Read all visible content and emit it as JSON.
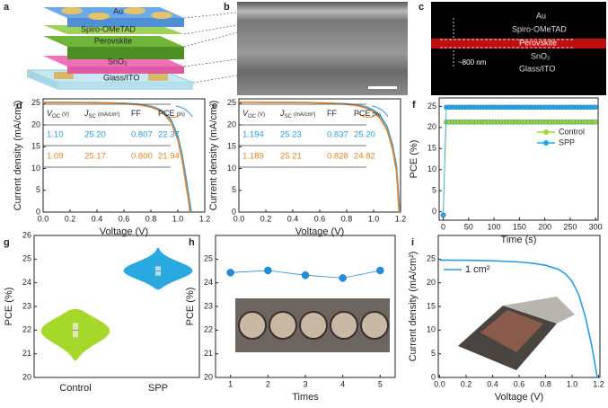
{
  "schematic": {
    "label": "a",
    "layers": [
      "Au",
      "Spiro-OMeTAD",
      "Perovskite",
      "SnO₂",
      "Glass/ITO"
    ]
  },
  "sem": {
    "label": "b"
  },
  "pl_image": {
    "label": "c",
    "layers": [
      "Au",
      "Spiro-OMeTAD",
      "Perovskite",
      "SnO₂",
      "Glass/ITO"
    ],
    "thickness": "~800 nm"
  },
  "chart_data": [
    {
      "type": "line",
      "label": "d",
      "xlabel": "Voltage (V)",
      "ylabel": "Current density (mA/cm²)",
      "xlim": [
        0,
        1.2
      ],
      "xticks": [
        {
          "value": 0,
          "label": "0.0"
        },
        0.2,
        0.4,
        0.6,
        0.8,
        {
          "value": 1,
          "label": "1.0"
        },
        1.2
      ],
      "ylim": [
        0,
        26
      ],
      "yticks": [
        0,
        5,
        10,
        15,
        20,
        25
      ],
      "series": [
        {
          "color": "#2b9be0",
          "x": [
            0,
            0.1,
            0.2,
            0.3,
            0.4,
            0.5,
            0.6,
            0.7,
            0.8,
            0.85,
            0.9,
            0.95,
            1.0,
            1.03,
            1.06,
            1.08,
            1.1
          ],
          "values": [
            25.2,
            25.2,
            25.19,
            25.18,
            25.15,
            25.1,
            25.0,
            24.8,
            24.3,
            23.8,
            22.9,
            21.2,
            17.5,
            13.5,
            8.0,
            4.0,
            0
          ]
        },
        {
          "color": "#e8842a",
          "x": [
            0,
            0.1,
            0.2,
            0.3,
            0.4,
            0.5,
            0.6,
            0.7,
            0.8,
            0.85,
            0.9,
            0.95,
            1.0,
            1.03,
            1.06,
            1.08,
            1.09
          ],
          "values": [
            25.17,
            25.17,
            25.16,
            25.14,
            25.1,
            25.05,
            24.9,
            24.65,
            24.1,
            23.5,
            22.5,
            20.6,
            16.6,
            12.3,
            6.5,
            2.6,
            0
          ]
        }
      ],
      "table": {
        "header": [
          {
            "main": "V",
            "sub": "OC",
            "unit": "(V)"
          },
          {
            "main": "J",
            "sub": "SC",
            "unit": "(mA/cm²)"
          },
          {
            "main": "FF"
          },
          {
            "main": "PCE",
            "unit": "(%)"
          }
        ],
        "rows": [
          [
            "1.10",
            "25.20",
            "0.807",
            "22.37"
          ],
          [
            "1.09",
            "25.17",
            "0.800",
            "21.94"
          ]
        ]
      }
    },
    {
      "type": "line",
      "label": "e",
      "xlabel": "Voltage (V)",
      "ylabel": "Current density (mA/cm²)",
      "xlim": [
        0,
        1.2
      ],
      "xticks": [
        {
          "value": 0,
          "label": "0.0"
        },
        0.2,
        0.4,
        0.6,
        0.8,
        {
          "value": 1,
          "label": "1.0"
        },
        1.2
      ],
      "ylim": [
        0,
        26
      ],
      "yticks": [
        0,
        5,
        10,
        15,
        20,
        25
      ],
      "series": [
        {
          "color": "#2b9be0",
          "x": [
            0,
            0.1,
            0.2,
            0.3,
            0.4,
            0.5,
            0.6,
            0.7,
            0.8,
            0.9,
            0.95,
            1.0,
            1.05,
            1.1,
            1.14,
            1.17,
            1.194
          ],
          "values": [
            25.23,
            25.23,
            25.22,
            25.21,
            25.19,
            25.16,
            25.1,
            25.0,
            24.85,
            24.5,
            24.1,
            23.4,
            22.1,
            19.6,
            15.5,
            10.5,
            0
          ]
        },
        {
          "color": "#e8842a",
          "x": [
            0,
            0.1,
            0.2,
            0.3,
            0.4,
            0.5,
            0.6,
            0.7,
            0.8,
            0.9,
            0.95,
            1.0,
            1.05,
            1.1,
            1.14,
            1.17,
            1.189
          ],
          "values": [
            25.21,
            25.21,
            25.2,
            25.19,
            25.17,
            25.13,
            25.06,
            24.95,
            24.75,
            24.3,
            23.8,
            23.0,
            21.5,
            18.8,
            14.5,
            9.3,
            0
          ]
        }
      ],
      "table": {
        "header": [
          {
            "main": "V",
            "sub": "OC",
            "unit": "(V)"
          },
          {
            "main": "J",
            "sub": "SC",
            "unit": "(mA/cm²)"
          },
          {
            "main": "FF"
          },
          {
            "main": "PCE",
            "unit": "(%)"
          }
        ],
        "rows": [
          [
            "1.194",
            "25.23",
            "0.837",
            "25.20"
          ],
          [
            "1.189",
            "25.21",
            "0.828",
            "24.82"
          ]
        ]
      }
    },
    {
      "type": "scatter",
      "label": "f",
      "xlabel": "Time (s)",
      "ylabel": "PCE (%)",
      "xlim": [
        -8,
        305
      ],
      "xticks": [
        0,
        50,
        100,
        150,
        200,
        250,
        300
      ],
      "ylim": [
        -2,
        27
      ],
      "yticks": [
        0,
        5,
        10,
        15,
        20,
        25
      ],
      "legend": "right",
      "x": [
        0,
        6,
        12,
        18,
        24,
        30,
        36,
        42,
        48,
        54,
        60,
        66,
        72,
        78,
        84,
        90,
        96,
        102,
        108,
        114,
        120,
        126,
        132,
        138,
        144,
        150,
        156,
        162,
        168,
        174,
        180,
        186,
        192,
        198,
        204,
        210,
        216,
        222,
        228,
        234,
        240,
        246,
        252,
        258,
        264,
        270,
        276,
        282,
        288,
        294,
        300
      ],
      "series": [
        {
          "name": "Control",
          "color": "#9bd83a",
          "values": [
            -0.8,
            21.3,
            21.3,
            21.3,
            21.3,
            21.3,
            21.3,
            21.3,
            21.3,
            21.3,
            21.3,
            21.3,
            21.3,
            21.3,
            21.3,
            21.3,
            21.3,
            21.3,
            21.3,
            21.3,
            21.3,
            21.3,
            21.3,
            21.3,
            21.3,
            21.3,
            21.3,
            21.3,
            21.3,
            21.3,
            21.3,
            21.3,
            21.3,
            21.3,
            21.3,
            21.3,
            21.3,
            21.3,
            21.3,
            21.3,
            21.3,
            21.3,
            21.3,
            21.3,
            21.3,
            21.3,
            21.3,
            21.3,
            21.3,
            21.3,
            21.3
          ]
        },
        {
          "name": "SPP",
          "color": "#29a6e6",
          "values": [
            -0.8,
            24.8,
            24.8,
            24.8,
            24.8,
            24.8,
            24.8,
            24.8,
            24.8,
            24.8,
            24.8,
            24.8,
            24.8,
            24.8,
            24.8,
            24.8,
            24.8,
            24.8,
            24.8,
            24.8,
            24.8,
            24.8,
            24.8,
            24.8,
            24.8,
            24.8,
            24.8,
            24.8,
            24.8,
            24.8,
            24.8,
            24.8,
            24.8,
            24.8,
            24.8,
            24.8,
            24.8,
            24.8,
            24.8,
            24.8,
            24.8,
            24.8,
            24.8,
            24.8,
            24.8,
            24.8,
            24.8,
            24.8,
            24.8,
            24.8,
            24.8
          ]
        }
      ]
    },
    {
      "type": "violin",
      "label": "g",
      "ylabel": "PCE (%)",
      "categories": [
        "Control",
        "SPP"
      ],
      "ylim": [
        20,
        26
      ],
      "yticks": [
        20,
        21,
        22,
        23,
        24,
        25,
        26
      ],
      "distributions": [
        {
          "color": "#a6d82c",
          "min": 20.7,
          "q1": 21.7,
          "median": 22.0,
          "q3": 22.3,
          "max": 22.9
        },
        {
          "color": "#2aa8e0",
          "min": 23.7,
          "q1": 24.3,
          "median": 24.5,
          "q3": 24.7,
          "max": 25.5
        }
      ]
    },
    {
      "type": "scatter",
      "label": "h",
      "xlabel": "Times",
      "ylabel": "PCE (%)",
      "xlim": [
        0.6,
        5.4
      ],
      "xticks": [
        1,
        2,
        3,
        4,
        5
      ],
      "ylim": [
        20,
        26
      ],
      "yticks": [
        20,
        21,
        22,
        23,
        24,
        25
      ],
      "x": [
        1,
        2,
        3,
        4,
        5
      ],
      "series": [
        {
          "color": "#1e8fdc",
          "values": [
            24.43,
            24.52,
            24.32,
            24.2,
            24.52
          ]
        }
      ]
    },
    {
      "type": "line",
      "label": "i",
      "xlabel": "Voltage (V)",
      "ylabel": "Current density (mA/cm²)",
      "xlim": [
        -0.01,
        1.21
      ],
      "xticks": [
        {
          "value": 0,
          "label": "0.0"
        },
        0.2,
        0.4,
        0.6,
        0.8,
        {
          "value": 1,
          "label": "1.0"
        },
        1.2
      ],
      "ylim": [
        0,
        30
      ],
      "yticks": [
        0,
        5,
        10,
        15,
        20,
        25
      ],
      "legend": "upper left",
      "series": [
        {
          "name": "1 cm²",
          "color": "#2b9be0",
          "x": [
            0,
            0.2,
            0.4,
            0.6,
            0.7,
            0.8,
            0.9,
            0.95,
            1.0,
            1.05,
            1.1,
            1.15,
            1.19
          ],
          "values": [
            24.8,
            24.75,
            24.65,
            24.4,
            24.15,
            23.7,
            22.8,
            21.9,
            20.3,
            17.5,
            12.8,
            6.5,
            0
          ]
        }
      ]
    }
  ]
}
